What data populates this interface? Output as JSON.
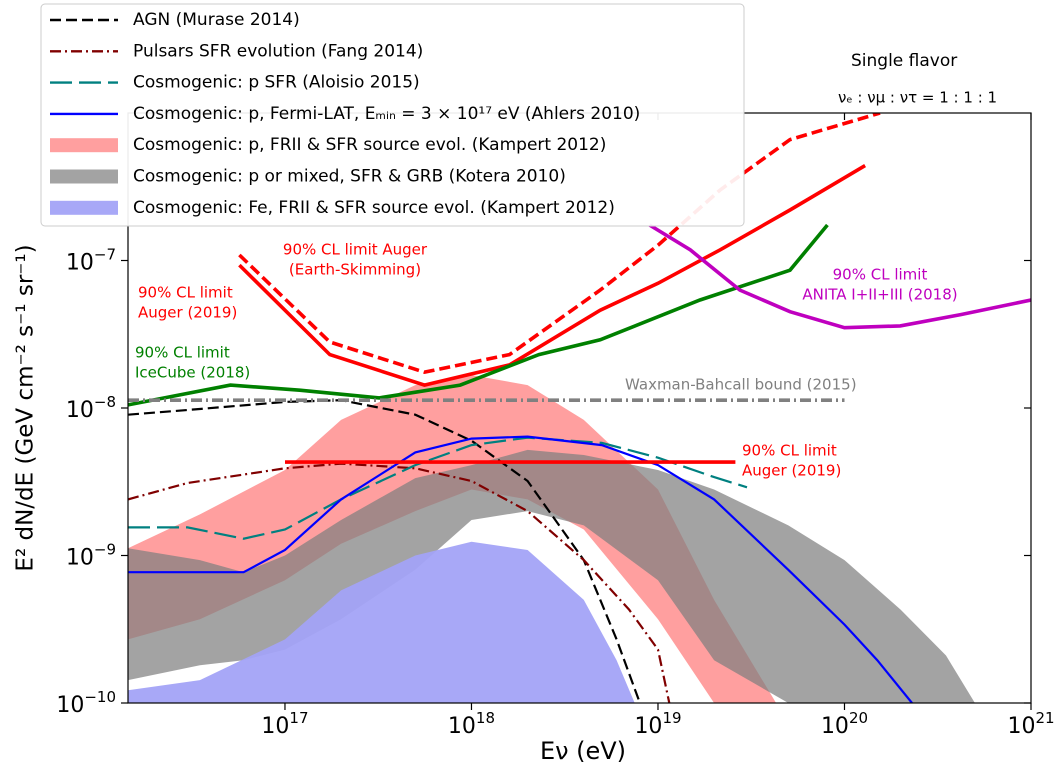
{
  "chart_data": {
    "type": "line",
    "xlabel": "Eν (eV)",
    "ylabel": "E² dN/dE (GeV cm⁻² s⁻¹ sr⁻¹)",
    "log_x": true,
    "log_y": true,
    "xlim": [
      1.44e+16,
      1e+21
    ],
    "ylim": [
      1e-10,
      1e-06
    ],
    "xticks": [
      {
        "value": 1e+17,
        "label": "10^17"
      },
      {
        "value": 1e+18,
        "label": "10^18"
      },
      {
        "value": 1e+19,
        "label": "10^19"
      },
      {
        "value": 1e+20,
        "label": "10^20"
      },
      {
        "value": 1e+21,
        "label": "10^21"
      }
    ],
    "yticks": [
      {
        "value": 1e-10,
        "label": "10^−10"
      },
      {
        "value": 1e-09,
        "label": "10^−9"
      },
      {
        "value": 1e-08,
        "label": "10^−8"
      },
      {
        "value": 1e-07,
        "label": "10^−7"
      }
    ],
    "legend": "upper left",
    "series": [
      {
        "name": "AGN (Murase 2014)",
        "color": "#000000",
        "style": "dashed",
        "x": [
          1.44e+16,
          3e+16,
          1e+17,
          2e+17,
          5e+17,
          1e+18,
          2e+18,
          4e+18,
          6e+18,
          8e+18
        ],
        "values": [
          9e-09,
          9.7e-09,
          1.1e-08,
          1.13e-08,
          9e-09,
          6e-09,
          3.2e-09,
          9.3e-10,
          2.7e-10,
          1e-10
        ]
      },
      {
        "name": "Pulsars SFR evolution (Fang 2014)",
        "color": "#800000",
        "style": "dashdot",
        "x": [
          1.44e+16,
          3e+16,
          1e+17,
          2e+17,
          5e+17,
          1e+18,
          2e+18,
          4e+18,
          7e+18,
          1e+19,
          1.15e+19
        ],
        "values": [
          2.4e-09,
          3.1e-09,
          3.9e-09,
          4.2e-09,
          3.9e-09,
          3.2e-09,
          2e-09,
          9.3e-10,
          4.3e-10,
          2.3e-10,
          1e-10
        ]
      },
      {
        "name": "Cosmogenic: p SFR (Aloisio 2015)",
        "color": "#008080",
        "style": "longdash",
        "x": [
          1.44e+16,
          3e+16,
          6e+16,
          1e+17,
          2e+17,
          5e+17,
          1e+18,
          2e+18,
          5e+18,
          1e+19,
          2e+19,
          3e+19
        ],
        "values": [
          1.55e-09,
          1.55e-09,
          1.3e-09,
          1.5e-09,
          2.4e-09,
          4.1e-09,
          5.6e-09,
          6.3e-09,
          5.8e-09,
          4.6e-09,
          3.4e-09,
          2.9e-09
        ]
      },
      {
        "name": "Cosmogenic: p, Fermi-LAT, Eₘᵢₙ = 3 × 10¹⁷ eV (Ahlers 2010)",
        "color": "#0000ff",
        "style": "solid",
        "x": [
          1.44e+16,
          3e+16,
          6e+16,
          1e+17,
          2e+17,
          5e+17,
          1e+18,
          2e+18,
          5e+18,
          1e+19,
          2e+19,
          5e+19,
          1e+20,
          1.5e+20,
          2.3e+20
        ],
        "values": [
          7.7e-10,
          7.7e-10,
          7.7e-10,
          1.09e-09,
          2.4e-09,
          5e-09,
          6.2e-09,
          6.4e-09,
          5.6e-09,
          4.1e-09,
          2.4e-09,
          8e-10,
          3.4e-10,
          1.95e-10,
          1e-10
        ]
      }
    ],
    "bands": [
      {
        "name": "Cosmogenic: p, FRII & SFR source evol. (Kampert 2012)",
        "color": "#ff9f9f",
        "x": [
          1.44e+16,
          3.5e+16,
          1e+17,
          2e+17,
          5e+17,
          1e+18,
          2e+18,
          4e+18,
          1e+19,
          2e+19,
          4.3e+19
        ],
        "high": [
          1.12e-09,
          1.9e-09,
          3.8e-09,
          8.3e-09,
          1.43e-08,
          1.67e-08,
          1.43e-08,
          8.3e-09,
          2.8e-09,
          5e-10,
          1e-10
        ],
        "low": [
          2.7e-10,
          3.7e-10,
          6.8e-10,
          1.2e-09,
          2e-09,
          2.8e-09,
          2.4e-09,
          1.5e-09,
          3.7e-10,
          1e-10,
          1e-10
        ]
      },
      {
        "name": "Cosmogenic: p or mixed, SFR & GRB (Kotera 2010)",
        "color": "#808080",
        "x": [
          1.44e+16,
          3.5e+16,
          6e+16,
          1e+17,
          2e+17,
          5e+17,
          1e+18,
          2e+18,
          4e+18,
          1e+19,
          2e+19,
          5e+19,
          1e+20,
          2e+20,
          3.5e+20,
          5e+20
        ],
        "high": [
          1.12e-09,
          9.3e-10,
          7.7e-10,
          1e-09,
          1.74e-09,
          3.35e-09,
          4.1e-09,
          5.2e-09,
          4.8e-09,
          3.8e-09,
          2.8e-09,
          1.6e-09,
          9.3e-10,
          4.3e-10,
          2.1e-10,
          1e-10
        ],
        "low": [
          1.43e-10,
          1.8e-10,
          1.95e-10,
          2.3e-10,
          3.7e-10,
          8e-10,
          1.74e-09,
          2e-09,
          1.6e-09,
          6.8e-10,
          1.95e-10,
          1e-10,
          1e-10,
          1e-10,
          1e-10,
          1e-10
        ]
      },
      {
        "name": "Cosmogenic: Fe, FRII & SFR source evol. (Kampert 2012)",
        "color": "#a3a3f7",
        "x": [
          1.44e+16,
          3.5e+16,
          1e+17,
          2e+17,
          5e+17,
          1e+18,
          2e+18,
          4e+18,
          6e+18,
          7.5e+18
        ],
        "high": [
          1.22e-10,
          1.43e-10,
          2.7e-10,
          5.8e-10,
          1e-09,
          1.24e-09,
          1.09e-09,
          5e-10,
          1.95e-10,
          1e-10
        ],
        "low": [
          1e-10,
          1e-10,
          1e-10,
          1e-10,
          1e-10,
          1e-10,
          1e-10,
          1e-10,
          1e-10,
          1e-10
        ]
      }
    ],
    "limits": [
      {
        "color": "#ff0000",
        "style": "solid",
        "x": [
          5.7e+16,
          1.74e+17,
          5.6e+17,
          1.6e+18,
          4.9e+18,
          1e+19,
          2.15e+19,
          5.1e+19,
          1.29e+20
        ],
        "values": [
          9.3e-08,
          2.3e-08,
          1.43e-08,
          1.96e-08,
          4.6e-08,
          7e-08,
          1.18e-07,
          2.2e-07,
          4.4e-07
        ]
      },
      {
        "color": "#ff0000",
        "style": "dashed",
        "x": [
          5.7e+16,
          1.74e+17,
          5.6e+17,
          1.6e+18,
          4.9e+18,
          1e+19,
          2.15e+19,
          5.1e+19,
          1.55e+20
        ],
        "values": [
          1.09e-07,
          2.8e-08,
          1.75e-08,
          2.3e-08,
          6.3e-08,
          1.27e-07,
          3e-07,
          6.6e-07,
          1e-06
        ]
      },
      {
        "color": "#008000",
        "style": "solid",
        "x": [
          1.44e+16,
          5.1e+16,
          1.2e+17,
          3.2e+17,
          8.7e+17,
          2.3e+18,
          4.9e+18,
          1.68e+19,
          5.1e+19,
          8.1e+19
        ],
        "values": [
          1.05e-08,
          1.43e-08,
          1.32e-08,
          1.17e-08,
          1.43e-08,
          2.3e-08,
          2.9e-08,
          5.4e-08,
          8.6e-08,
          1.74e-07
        ]
      },
      {
        "color": "#bf00bf",
        "style": "solid",
        "x": [
          9e+18,
          1.49e+19,
          2.75e+19,
          5.1e+19,
          1e+20,
          1.99e+20,
          4.2e+20,
          1e+21
        ],
        "values": [
          1.74e-07,
          1.18e-07,
          6.3e-08,
          4.5e-08,
          3.5e-08,
          3.6e-08,
          4.3e-08,
          5.4e-08
        ]
      },
      {
        "color": "#ff0000",
        "style": "solid",
        "x": [
          1e+17,
          2.6e+19
        ],
        "values": [
          4.3e-09,
          4.3e-09
        ]
      },
      {
        "color": "#808080",
        "style": "dashdot",
        "x": [
          1.44e+16,
          1e+20
        ],
        "values": [
          1.13e-08,
          1.13e-08
        ]
      }
    ],
    "annotations": [
      {
        "lines": [
          "90% CL limit Auger",
          "(Earth-Skimming)"
        ],
        "color": "#ff0000"
      },
      {
        "lines": [
          "90% CL limit",
          "Auger (2019)"
        ],
        "color": "#ff0000"
      },
      {
        "lines": [
          "90% CL limit",
          "IceCube (2018)"
        ],
        "color": "#008000"
      },
      {
        "lines": [
          "Waxman-Bahcall bound (2015)"
        ],
        "color": "#808080"
      },
      {
        "lines": [
          "90% CL limit",
          "Auger (2019)"
        ],
        "color": "#ff0000"
      },
      {
        "lines": [
          "90% CL limit",
          "ANITA I+II+III (2018)"
        ],
        "color": "#bf00bf"
      },
      {
        "lines": [
          "Single flavor"
        ],
        "color": "#000000"
      },
      {
        "lines": [
          "νₑ : νμ : ντ = 1 : 1 : 1"
        ],
        "color": "#000000"
      }
    ]
  }
}
